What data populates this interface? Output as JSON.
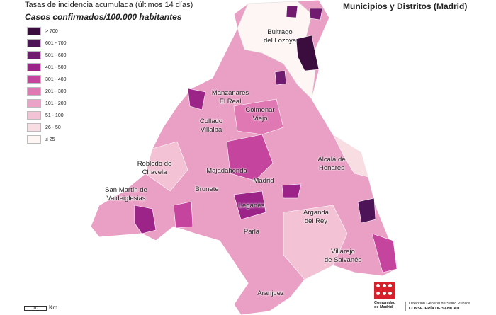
{
  "header": {
    "title": "Tasas de incidencia acumulada (últimos 14 días)",
    "subtitle": "Casos confirmados/100.000 habitantes",
    "map_title": "Municipios y Distritos (Madrid)"
  },
  "legend": [
    {
      "label": "> 700",
      "color": "#3b0d3e"
    },
    {
      "label": "601 - 700",
      "color": "#4d1458"
    },
    {
      "label": "501 - 600",
      "color": "#701b70"
    },
    {
      "label": "401 - 500",
      "color": "#9c2388"
    },
    {
      "label": "301 - 400",
      "color": "#c5449d"
    },
    {
      "label": "201 - 300",
      "color": "#df78b3"
    },
    {
      "label": "101 - 200",
      "color": "#eba2c7"
    },
    {
      "label": "51 - 100",
      "color": "#f3c3d5"
    },
    {
      "label": "26 - 50",
      "color": "#f8dde2"
    },
    {
      "label": "≤ 25",
      "color": "#fdf6f4"
    }
  ],
  "places": [
    {
      "lines": [
        "Buitrago",
        "del Lozoya"
      ]
    },
    {
      "lines": [
        "Manzanares",
        "El Real"
      ]
    },
    {
      "lines": [
        "Colmenar",
        "Viejo"
      ]
    },
    {
      "lines": [
        "Collado",
        "Villalba"
      ]
    },
    {
      "lines": [
        "Robledo de",
        "Chavela"
      ]
    },
    {
      "lines": [
        "Alcalá de",
        "Henares"
      ]
    },
    {
      "lines": [
        "Majadahonda"
      ]
    },
    {
      "lines": [
        "Madrid"
      ]
    },
    {
      "lines": [
        "Brunete"
      ]
    },
    {
      "lines": [
        "San Martín de",
        "Valdeiglesias"
      ]
    },
    {
      "lines": [
        "Leganés"
      ]
    },
    {
      "lines": [
        "Arganda",
        "del Rey"
      ]
    },
    {
      "lines": [
        "Parla"
      ]
    },
    {
      "lines": [
        "Villarejo",
        "de Salvanés"
      ]
    },
    {
      "lines": [
        "Aranjuez"
      ]
    }
  ],
  "scale": {
    "value": "10",
    "unit": "Km"
  },
  "logo": {
    "name": [
      "Comunidad",
      "de Madrid"
    ],
    "department": [
      "Dirección General de Salud Pública",
      "CONSEJERÍA DE SANIDAD"
    ]
  }
}
